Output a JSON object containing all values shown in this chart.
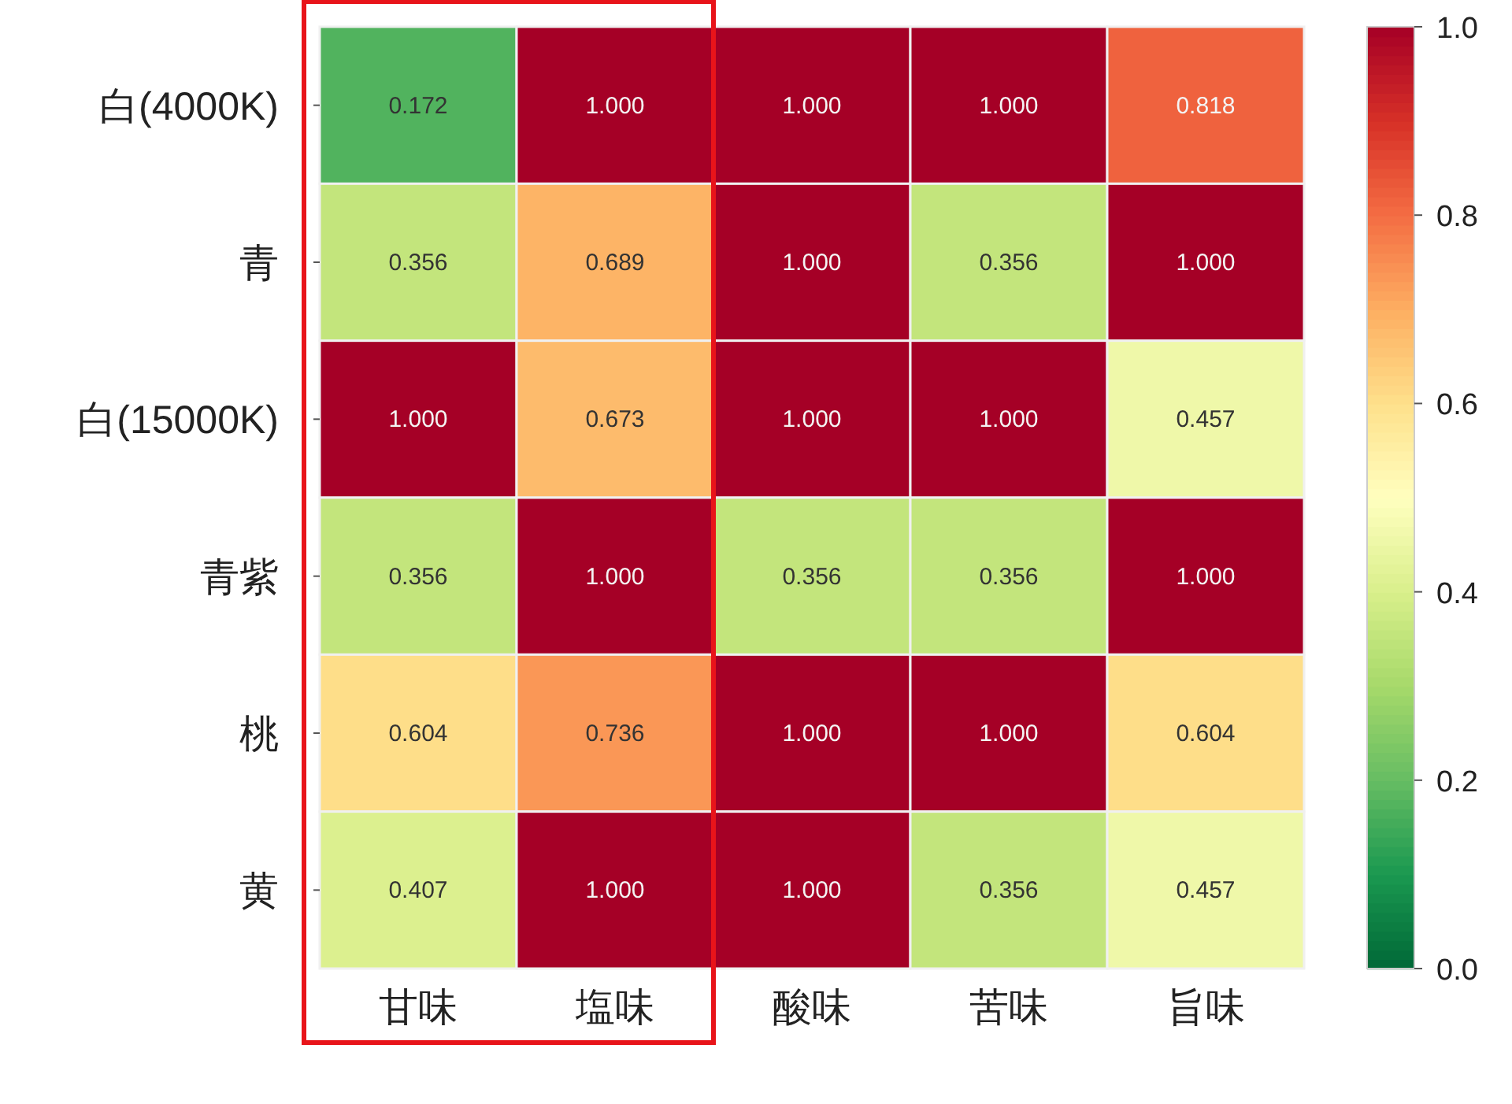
{
  "chart_data": {
    "type": "heatmap",
    "categories": [
      "甘味",
      "塩味",
      "酸味",
      "苦味",
      "旨味"
    ],
    "y_categories": [
      "白(4000K)",
      "青",
      "白(15000K)",
      "青紫",
      "桃",
      "黄"
    ],
    "cells": [
      [
        0.172,
        1.0,
        1.0,
        1.0,
        0.818
      ],
      [
        0.356,
        0.689,
        1.0,
        0.356,
        1.0
      ],
      [
        1.0,
        0.673,
        1.0,
        1.0,
        0.457
      ],
      [
        0.356,
        1.0,
        0.356,
        0.356,
        1.0
      ],
      [
        0.604,
        0.736,
        1.0,
        1.0,
        0.604
      ],
      [
        0.407,
        1.0,
        1.0,
        0.356,
        0.457
      ]
    ],
    "cell_labels": [
      [
        "0.172",
        "1.000",
        "1.000",
        "1.000",
        "0.818"
      ],
      [
        "0.356",
        "0.689",
        "1.000",
        "0.356",
        "1.000"
      ],
      [
        "1.000",
        "0.673",
        "1.000",
        "1.000",
        "0.457"
      ],
      [
        "0.356",
        "1.000",
        "0.356",
        "0.356",
        "1.000"
      ],
      [
        "0.604",
        "0.736",
        "1.000",
        "1.000",
        "0.604"
      ],
      [
        "0.407",
        "1.000",
        "1.000",
        "0.356",
        "0.457"
      ]
    ],
    "clim": [
      0,
      1
    ],
    "cticks": [
      {
        "value": 0,
        "label": "0.0"
      },
      {
        "value": 0.2,
        "label": "0.2"
      },
      {
        "value": 0.4,
        "label": "0.4"
      },
      {
        "value": 0.6,
        "label": "0.6"
      },
      {
        "value": 0.8,
        "label": "0.8"
      },
      {
        "value": 1,
        "label": "1.0"
      }
    ]
  }
}
